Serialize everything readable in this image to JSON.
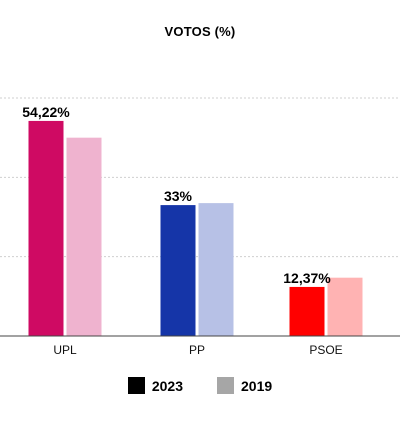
{
  "chart_data": {
    "type": "bar",
    "title": "VOTOS (%)",
    "xlabel": "",
    "ylabel": "",
    "categories": [
      "UPL",
      "PP",
      "PSOE"
    ],
    "series": [
      {
        "name": "2023",
        "values": [
          54.22,
          33,
          12.37
        ],
        "labels": [
          "54,22%",
          "33%",
          "12,37%"
        ]
      },
      {
        "name": "2019",
        "values": [
          50.0,
          33.5,
          14.7
        ]
      }
    ],
    "colors": {
      "2023": [
        "#cf0a63",
        "#1535a8",
        "#ff0000"
      ],
      "2019": [
        "#efb3cf",
        "#b7c1e6",
        "#ffb3b3"
      ]
    },
    "legend": [
      {
        "label": "2023",
        "color": "#000000"
      },
      {
        "label": "2019",
        "color": "#a6a6a6"
      }
    ],
    "ylim": [
      0,
      60
    ],
    "grid": true,
    "legend_position": "bottom"
  }
}
